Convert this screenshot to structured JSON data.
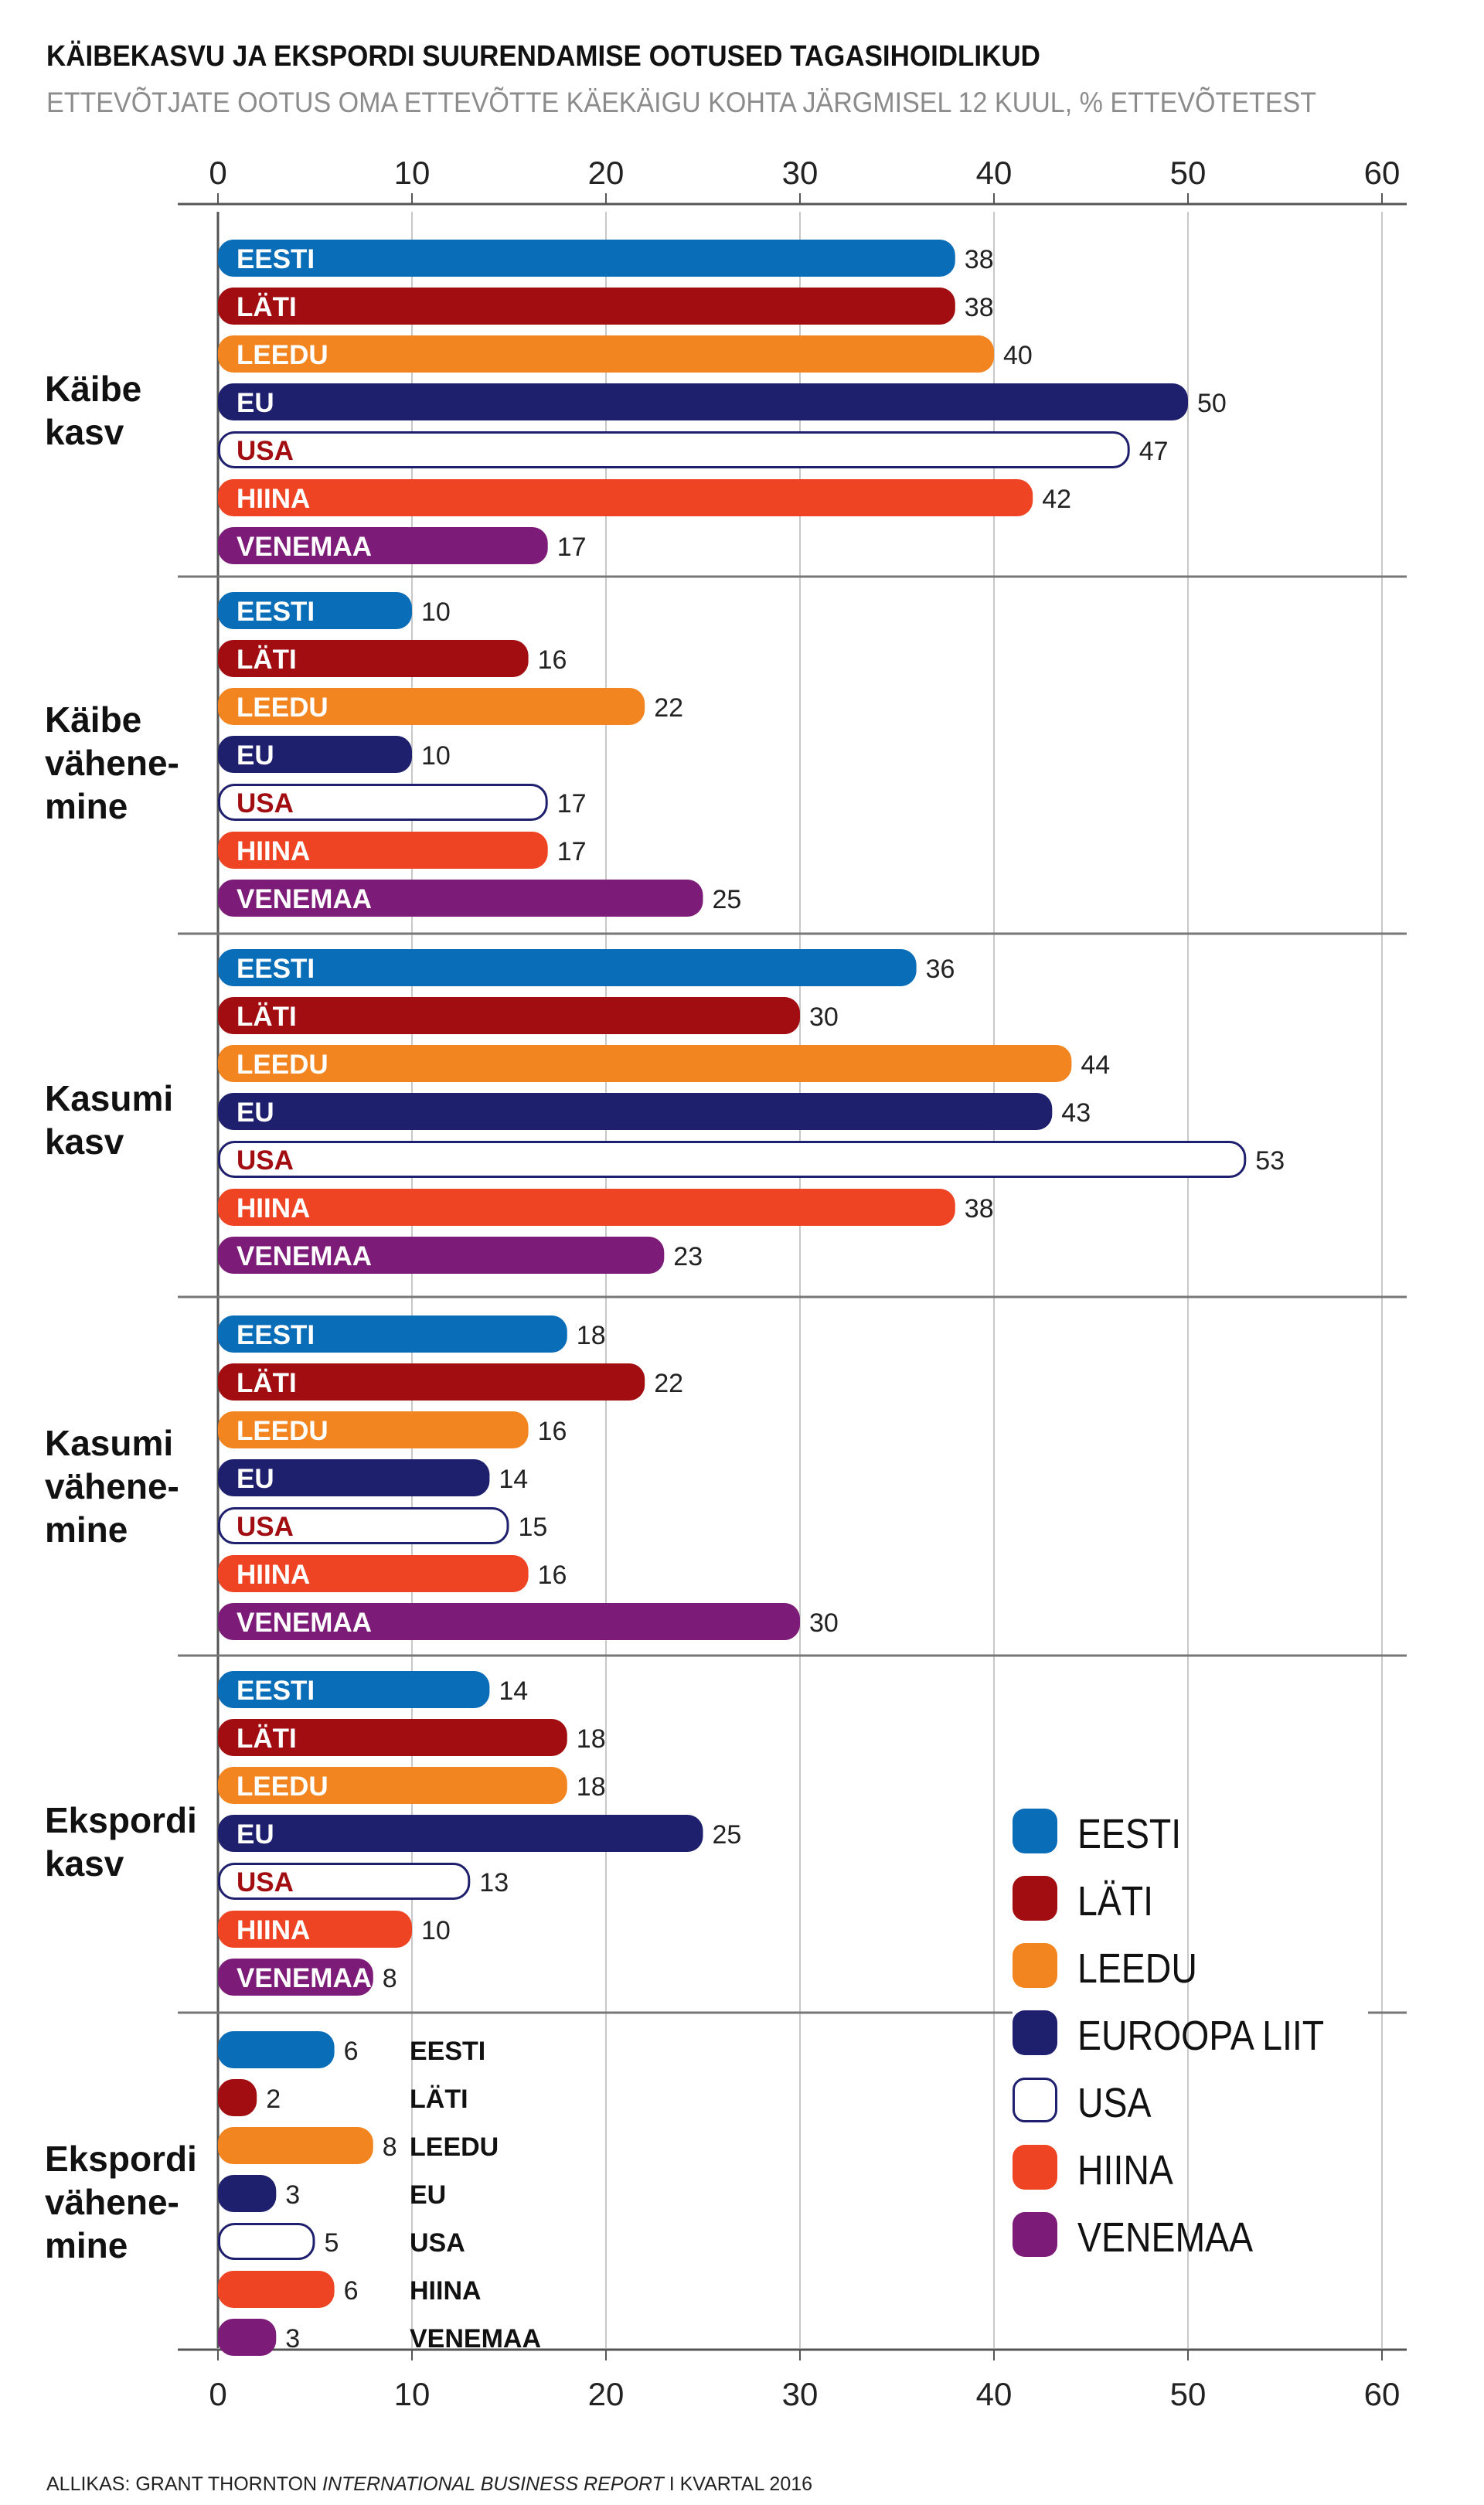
{
  "chart_data": {
    "type": "bar",
    "orientation": "horizontal",
    "title": "KÄIBEKASVU JA EKSPORDI SUURENDAMISE OOTUSED TAGASIHOIDLIKUD",
    "subtitle": "ETTEVÕTJATE OOTUS OMA ETTEVÕTTE KÄEKÄIGU KOHTA JÄRGMISEL 12 KUUL, % ETTEVÕTETEST",
    "xlim": [
      0,
      60
    ],
    "xticks": [
      "0",
      "10",
      "20",
      "30",
      "40",
      "50",
      "60"
    ],
    "series": [
      {
        "key": "eesti",
        "name": "EESTI",
        "legend": "EESTI",
        "color": "#0a6db8",
        "text_color": "#ffffff"
      },
      {
        "key": "lati",
        "name": "LÄTI",
        "legend": "LÄTI",
        "color": "#a10d10",
        "text_color": "#ffffff"
      },
      {
        "key": "leedu",
        "name": "LEEDU",
        "legend": "LEEDU",
        "color": "#f28520",
        "text_color": "#ffffff"
      },
      {
        "key": "eu",
        "name": "EU",
        "legend": "EUROOPA LIIT",
        "color": "#1e1f6d",
        "text_color": "#ffffff"
      },
      {
        "key": "usa",
        "name": "USA",
        "legend": "USA",
        "color": "#ffffff",
        "text_color": "#a10d10",
        "outline": "#1e1f6d"
      },
      {
        "key": "hiina",
        "name": "HIINA",
        "legend": "HIINA",
        "color": "#ee4423",
        "text_color": "#ffffff"
      },
      {
        "key": "venemaa",
        "name": "VENEMAA",
        "legend": "VENEMAA",
        "color": "#7d1b78",
        "text_color": "#ffffff"
      }
    ],
    "groups": [
      {
        "label": [
          "Käibe",
          "kasv"
        ],
        "values": [
          38,
          38,
          40,
          50,
          47,
          42,
          17
        ],
        "value_labels": [
          "38",
          "38",
          "40",
          "50",
          "47",
          "42",
          "17"
        ]
      },
      {
        "label": [
          "Käibe",
          "vähene-",
          "mine"
        ],
        "values": [
          10,
          16,
          22,
          10,
          17,
          17,
          25
        ],
        "value_labels": [
          "10",
          "16",
          "22",
          "10",
          "17",
          "17",
          "25"
        ]
      },
      {
        "label": [
          "Kasumi",
          "kasv"
        ],
        "values": [
          36,
          30,
          44,
          43,
          53,
          38,
          23
        ],
        "value_labels": [
          "36",
          "30",
          "44",
          "43",
          "53",
          "38",
          "23"
        ]
      },
      {
        "label": [
          "Kasumi",
          "vähene-",
          "mine"
        ],
        "values": [
          18,
          22,
          16,
          14,
          15,
          16,
          30
        ],
        "value_labels": [
          "18",
          "22",
          "16",
          "14",
          "15",
          "16",
          "30"
        ]
      },
      {
        "label": [
          "Ekspordi",
          "kasv"
        ],
        "values": [
          14,
          18,
          18,
          25,
          13,
          10,
          8
        ],
        "value_labels": [
          "14",
          "18",
          "18",
          "25",
          "13",
          "10",
          "8"
        ]
      },
      {
        "label": [
          "Ekspordi",
          "vähene-",
          "mine"
        ],
        "values": [
          6,
          2,
          8,
          3,
          5,
          6,
          3
        ],
        "value_labels": [
          "6",
          "2",
          "8",
          "3",
          "5",
          "6",
          "3"
        ],
        "names_outside": true
      }
    ]
  },
  "source": {
    "prefix": "ALLIKAS: GRANT THORNTON ",
    "italic": "INTERNATIONAL BUSINESS REPORT",
    "suffix": " I KVARTAL 2016"
  }
}
